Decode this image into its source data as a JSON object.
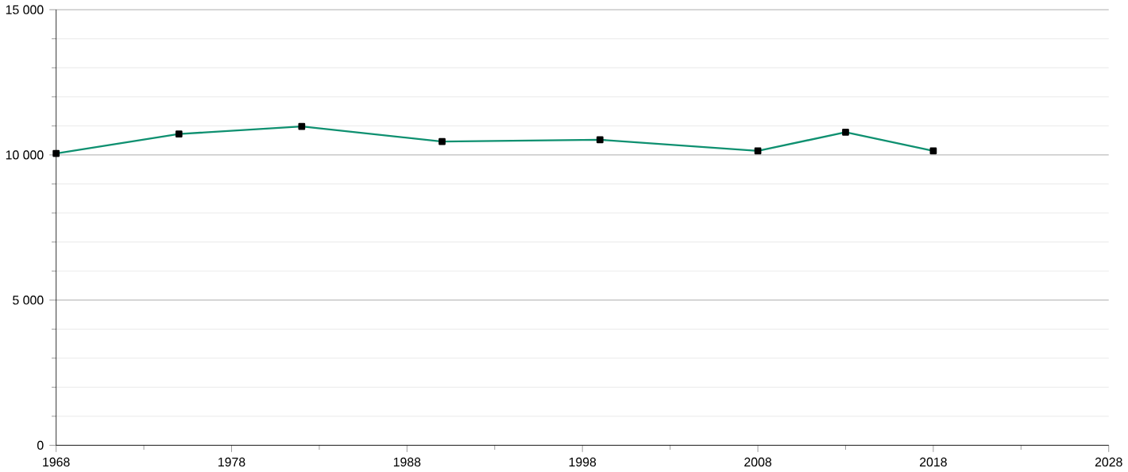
{
  "chart_data": {
    "type": "line",
    "x": [
      1968,
      1975,
      1982,
      1990,
      1999,
      2008,
      2013,
      2018
    ],
    "series": [
      {
        "color": "#0e9070",
        "values": [
          10050,
          10720,
          10980,
          10460,
          10520,
          10140,
          10780,
          10140
        ]
      }
    ],
    "xlim": [
      1968,
      2028
    ],
    "xticks": [
      1968,
      1978,
      1988,
      1998,
      2008,
      2018,
      2028
    ],
    "ylim": [
      0,
      15000
    ],
    "yticks": [
      {
        "value": 0,
        "label": "0"
      },
      {
        "value": 5000,
        "label": "5 000"
      },
      {
        "value": 10000,
        "label": "10 000"
      },
      {
        "value": 15000,
        "label": "15 000"
      }
    ],
    "grid": "y",
    "marker": "square",
    "line_style": "solid"
  }
}
